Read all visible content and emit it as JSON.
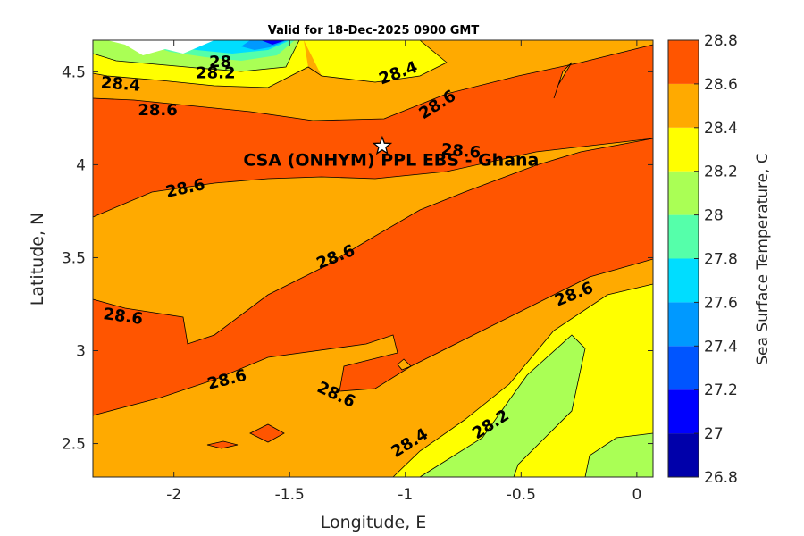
{
  "chart_data": {
    "type": "heatmap",
    "subtype": "filled-contour",
    "title": "Valid for 18-Dec-2025 0900 GMT",
    "xlabel": "Longitude, E",
    "ylabel": "Latitude, N",
    "xlim": [
      -2.35,
      0.07
    ],
    "ylim": [
      2.32,
      4.67
    ],
    "xticks": [
      -2,
      -1.5,
      -1,
      -0.5,
      0
    ],
    "xtick_labels": [
      "-2",
      "-1.5",
      "-1",
      "-0.5",
      "0"
    ],
    "yticks": [
      2.5,
      3,
      3.5,
      4,
      4.5
    ],
    "ytick_labels": [
      "2.5",
      "3",
      "3.5",
      "4",
      "4.5"
    ],
    "colorbar": {
      "label": "Sea Surface Temperature, C",
      "levels": [
        26.8,
        27,
        27.2,
        27.4,
        27.6,
        27.8,
        28,
        28.2,
        28.4,
        28.6,
        28.8
      ],
      "tick_labels": [
        "26.8",
        "27",
        "27.2",
        "27.4",
        "27.6",
        "27.8",
        "28",
        "28.2",
        "28.4",
        "28.6",
        "28.8"
      ],
      "colors": [
        "#0000aa",
        "#0000ff",
        "#0055ff",
        "#0099ff",
        "#00ddff",
        "#55ffaa",
        "#aaff55",
        "#ffff00",
        "#ffaa00",
        "#ff5500"
      ]
    },
    "colors": {
      "c282": "#aaff55",
      "c284": "#ffff00",
      "c286": "#ffaa00",
      "c288": "#ff5500",
      "cyan": "#00ddff",
      "teal": "#55ffaa",
      "blue": "#0099ff",
      "darkblue": "#0000ff"
    },
    "contour_labels": [
      {
        "text": "28.4",
        "lon": -2.23,
        "lat": 4.43,
        "angle": 5
      },
      {
        "text": "28.2",
        "lon": -1.82,
        "lat": 4.49,
        "angle": 0
      },
      {
        "text": "28",
        "lon": -1.8,
        "lat": 4.55,
        "angle": 0
      },
      {
        "text": "28.4",
        "lon": -1.03,
        "lat": 4.49,
        "angle": -20
      },
      {
        "text": "28.6",
        "lon": -2.07,
        "lat": 4.29,
        "angle": 0
      },
      {
        "text": "28.6",
        "lon": -0.86,
        "lat": 4.32,
        "angle": -32
      },
      {
        "text": "28.6",
        "lon": -0.76,
        "lat": 4.07,
        "angle": 5
      },
      {
        "text": "28.6",
        "lon": -1.95,
        "lat": 3.87,
        "angle": -12
      },
      {
        "text": "28.6",
        "lon": -1.3,
        "lat": 3.5,
        "angle": -22
      },
      {
        "text": "28.6",
        "lon": -2.22,
        "lat": 3.18,
        "angle": 8
      },
      {
        "text": "28.6",
        "lon": -1.77,
        "lat": 2.84,
        "angle": -14
      },
      {
        "text": "28.6",
        "lon": -1.3,
        "lat": 2.76,
        "angle": 25
      },
      {
        "text": "28.6",
        "lon": -0.27,
        "lat": 3.3,
        "angle": -22
      },
      {
        "text": "28.4",
        "lon": -0.98,
        "lat": 2.5,
        "angle": -32
      },
      {
        "text": "28.2",
        "lon": -0.63,
        "lat": 2.6,
        "angle": -33
      }
    ],
    "site": {
      "label": "CSA (ONHYM) PPL EBS - Ghana",
      "lon": -1.1,
      "lat": 4.1
    }
  }
}
